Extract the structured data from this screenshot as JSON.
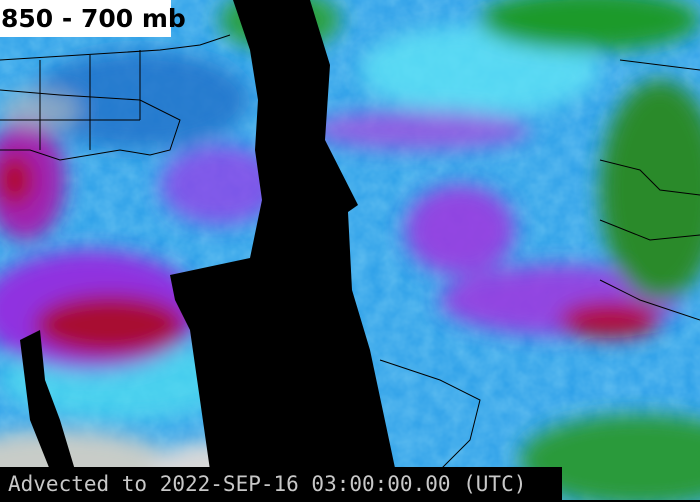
{
  "title": "850 - 700 mb",
  "footer": "Advected to 2022-SEP-16 03:00:00.00 (UTC)",
  "colors": {
    "low": "#1a8fe0",
    "mid": "#30d8f0",
    "high": "#8a2be2",
    "max": "#a00018",
    "land_dry": "#1f9a2a",
    "no_data": "#000000"
  }
}
